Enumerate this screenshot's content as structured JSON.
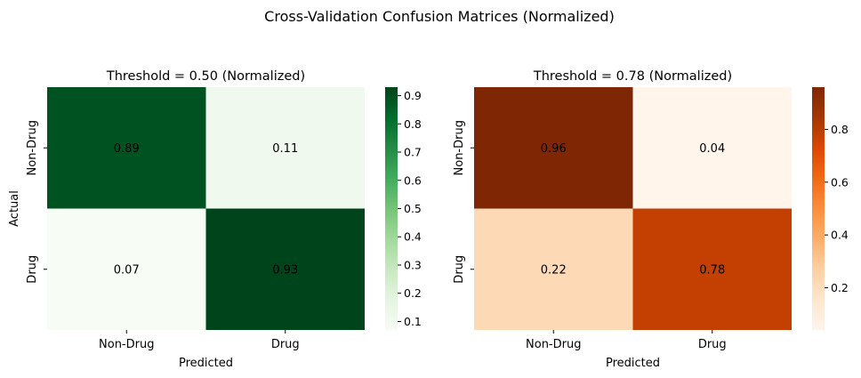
{
  "figure": {
    "suptitle": "Cross-Validation Confusion Matrices (Normalized)"
  },
  "chart_data": [
    {
      "type": "heatmap",
      "title": "Threshold = 0.50 (Normalized)",
      "xlabel": "Predicted",
      "ylabel": "Actual",
      "x_categories": [
        "Non-Drug",
        "Drug"
      ],
      "y_categories": [
        "Non-Drug",
        "Drug"
      ],
      "values": [
        [
          0.89,
          0.11
        ],
        [
          0.07,
          0.93
        ]
      ],
      "value_labels": [
        [
          "0.89",
          "0.11"
        ],
        [
          "0.07",
          "0.93"
        ]
      ],
      "colormap": "Greens",
      "color_range": [
        0.07,
        0.93
      ],
      "colorbar_ticks": [
        "0.1",
        "0.2",
        "0.3",
        "0.4",
        "0.5",
        "0.6",
        "0.7",
        "0.8",
        "0.9"
      ],
      "colors": [
        "#f7fcf5",
        "#e5f5e0",
        "#c7e9c0",
        "#a1d99b",
        "#74c476",
        "#41ab5d",
        "#238b45",
        "#006d2c",
        "#00441b"
      ]
    },
    {
      "type": "heatmap",
      "title": "Threshold = 0.78 (Normalized)",
      "xlabel": "Predicted",
      "ylabel": "",
      "x_categories": [
        "Non-Drug",
        "Drug"
      ],
      "y_categories": [
        "Non-Drug",
        "Drug"
      ],
      "values": [
        [
          0.96,
          0.04
        ],
        [
          0.22,
          0.78
        ]
      ],
      "value_labels": [
        [
          "0.96",
          "0.04"
        ],
        [
          "0.22",
          "0.78"
        ]
      ],
      "colormap": "Oranges",
      "color_range": [
        0.04,
        0.96
      ],
      "colorbar_ticks": [
        "0.2",
        "0.4",
        "0.6",
        "0.8"
      ],
      "colors": [
        "#fff5eb",
        "#fee6ce",
        "#fdd0a2",
        "#fdae6b",
        "#fd8d3c",
        "#f16913",
        "#d94801",
        "#a63603",
        "#7f2704"
      ]
    }
  ]
}
